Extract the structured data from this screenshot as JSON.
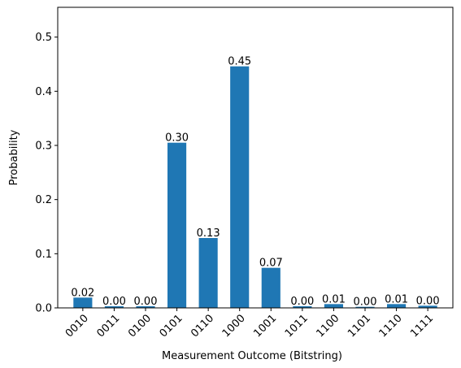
{
  "chart_data": {
    "type": "bar",
    "title": "",
    "xlabel": "Measurement Outcome (Bitstring)",
    "ylabel": "Probability",
    "ylim": [
      0,
      0.555
    ],
    "yticks": [
      0.0,
      0.1,
      0.2,
      0.3,
      0.4,
      0.5
    ],
    "ytick_labels": [
      "0.0",
      "0.1",
      "0.2",
      "0.3",
      "0.4",
      "0.5"
    ],
    "grid": false,
    "bar_color": "#1f77b4",
    "categories": [
      "0010",
      "0011",
      "0100",
      "0101",
      "0110",
      "1000",
      "1001",
      "1011",
      "1100",
      "1101",
      "1110",
      "1111"
    ],
    "values": [
      0.019,
      0.003,
      0.003,
      0.305,
      0.129,
      0.446,
      0.074,
      0.003,
      0.007,
      0.002,
      0.007,
      0.004
    ],
    "value_labels": [
      "0.02",
      "0.00",
      "0.00",
      "0.30",
      "0.13",
      "0.45",
      "0.07",
      "0.00",
      "0.01",
      "0.00",
      "0.01",
      "0.00"
    ]
  }
}
